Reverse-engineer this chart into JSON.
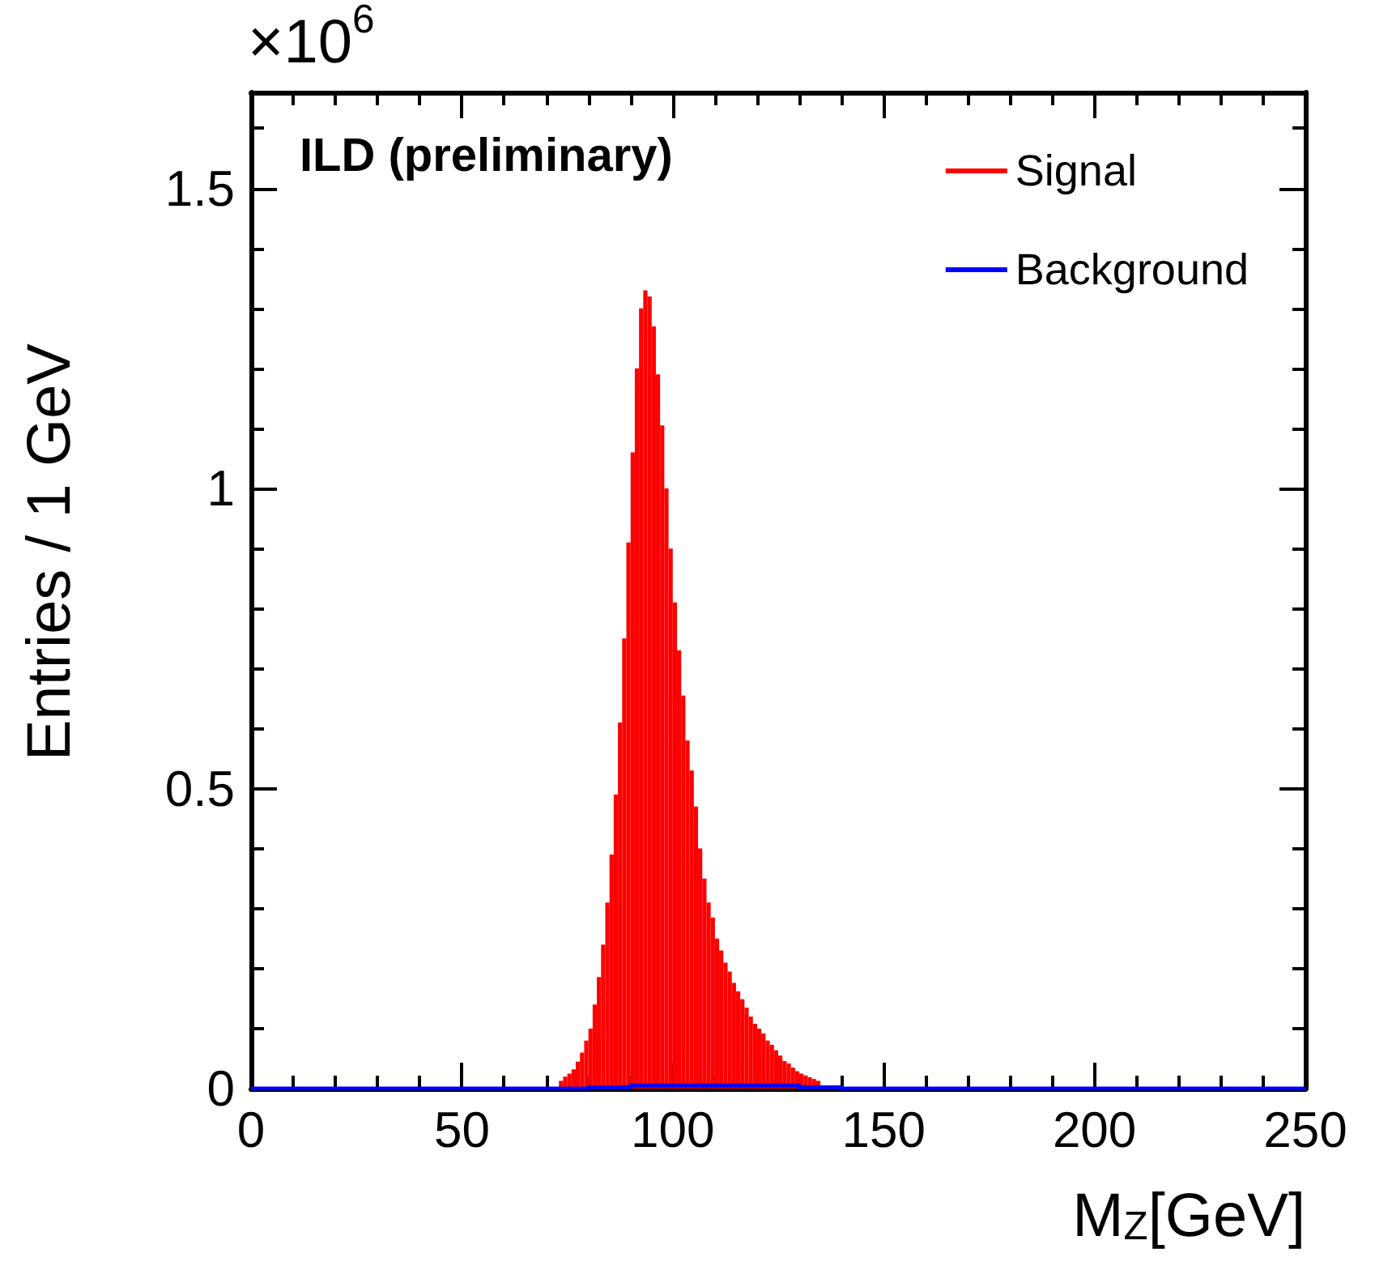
{
  "chart_data": {
    "type": "histogram",
    "xlabel": "M$_{Z}$[GeV]",
    "ylabel": "Entries / 1 GeV",
    "annotations": [
      "ILD (preliminary)",
      "×10$^{6}$"
    ],
    "bins": [
      73,
      74,
      75,
      76,
      77,
      78,
      79,
      80,
      81,
      82,
      83,
      84,
      85,
      86,
      87,
      88,
      89,
      90,
      91,
      92,
      93,
      94,
      95,
      96,
      97,
      98,
      99,
      100,
      101,
      102,
      103,
      104,
      105,
      106,
      107,
      108,
      109,
      110,
      111,
      112,
      113,
      114,
      115,
      116,
      117,
      118,
      119,
      120,
      121,
      122,
      123,
      124,
      125,
      126,
      127,
      128,
      129,
      130,
      131,
      132,
      133,
      134,
      135,
      136,
      137,
      138
    ],
    "series": [
      {
        "name": "Signal",
        "color": "#ff0000",
        "values": [
          0.013,
          0.02,
          0.025,
          0.032,
          0.045,
          0.06,
          0.08,
          0.1,
          0.14,
          0.186,
          0.24,
          0.31,
          0.39,
          0.49,
          0.61,
          0.75,
          0.91,
          1.06,
          1.2,
          1.3,
          1.33,
          1.32,
          1.27,
          1.19,
          1.105,
          1.0,
          0.9,
          0.81,
          0.73,
          0.655,
          0.58,
          0.53,
          0.47,
          0.4,
          0.35,
          0.31,
          0.285,
          0.25,
          0.23,
          0.21,
          0.195,
          0.176,
          0.162,
          0.149,
          0.135,
          0.12,
          0.108,
          0.1,
          0.092,
          0.08,
          0.073,
          0.064,
          0.055,
          0.046,
          0.042,
          0.035,
          0.029,
          0.025,
          0.022,
          0.019,
          0.016,
          0.013,
          null,
          null,
          null
        ]
      },
      {
        "name": "Background",
        "type": "step",
        "color": "#0000ff",
        "x": [
          0,
          80,
          90,
          130,
          140,
          250
        ],
        "values": [
          0,
          0.002,
          0.005,
          0.002,
          0,
          0
        ]
      }
    ],
    "xlim": [
      0,
      250
    ],
    "xticks": [
      0,
      {
        "value": 10,
        "label": null
      },
      {
        "value": 20,
        "label": null
      },
      {
        "value": 30,
        "label": null
      },
      {
        "value": 40,
        "label": null
      },
      50,
      {
        "value": 60,
        "label": null
      },
      {
        "value": 70,
        "label": null
      },
      {
        "value": 80,
        "label": null
      },
      {
        "value": 90,
        "label": null
      },
      100,
      {
        "value": 110,
        "label": null
      },
      {
        "value": 120,
        "label": null
      },
      {
        "value": 130,
        "label": null
      },
      {
        "value": 140,
        "label": null
      },
      150,
      {
        "value": 160,
        "label": null
      },
      {
        "value": 170,
        "label": null
      },
      {
        "value": 180,
        "label": null
      },
      {
        "value": 190,
        "label": null
      },
      200,
      {
        "value": 210,
        "label": null
      },
      {
        "value": 220,
        "label": null
      },
      {
        "value": 230,
        "label": null
      },
      {
        "value": 240,
        "label": null
      },
      250
    ],
    "ylim": [
      0,
      1.66
    ],
    "yticks": [
      0,
      {
        "value": 0.1,
        "label": null
      },
      {
        "value": 0.2,
        "label": null
      },
      {
        "value": 0.3,
        "label": null
      },
      {
        "value": 0.4,
        "label": null
      },
      0.5,
      {
        "value": 0.6,
        "label": null
      },
      {
        "value": 0.7,
        "label": null
      },
      {
        "value": 0.8,
        "label": null
      },
      {
        "value": 0.9,
        "label": null
      },
      1,
      {
        "value": 1.1,
        "label": null
      },
      {
        "value": 1.2,
        "label": null
      },
      {
        "value": 1.3,
        "label": null
      },
      {
        "value": 1.4,
        "label": null
      },
      1.5,
      {
        "value": 1.6,
        "label": null
      }
    ],
    "grid": false,
    "legend": "top right"
  }
}
